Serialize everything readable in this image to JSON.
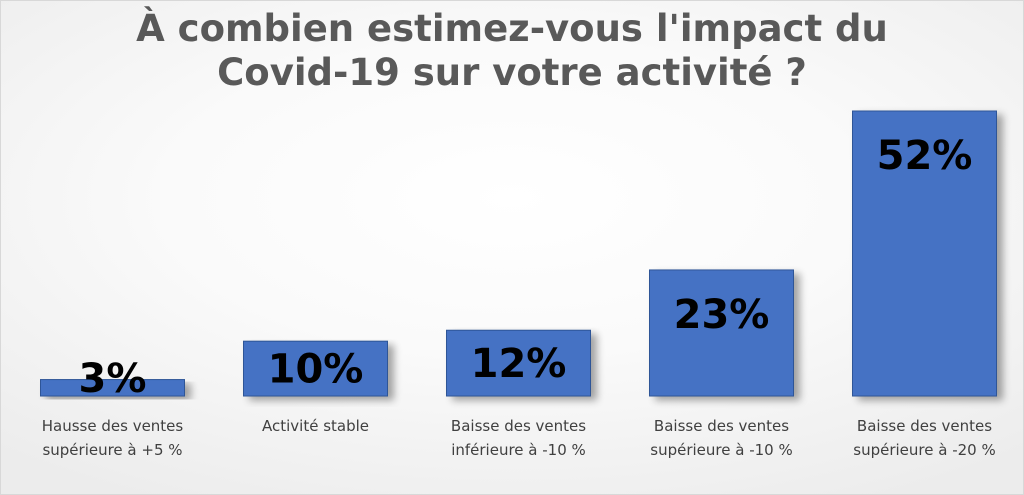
{
  "chart_data": {
    "type": "bar",
    "title_lines": [
      "À combien estimez-vous l'impact du",
      "Covid-19 sur votre activité ?"
    ],
    "categories": [
      [
        "Hausse des ventes",
        "supérieure à +5 %"
      ],
      [
        "Activité stable"
      ],
      [
        "Baisse des ventes",
        "inférieure à -10 %"
      ],
      [
        "Baisse des ventes",
        "supérieure à -10 %"
      ],
      [
        "Baisse des ventes",
        "supérieure à -20 %"
      ]
    ],
    "values": [
      3,
      10,
      12,
      23,
      52
    ],
    "data_labels": [
      "3%",
      "10%",
      "12%",
      "23%",
      "52%"
    ],
    "ylim": [
      0,
      52
    ],
    "grid": false,
    "colors": {
      "bar": "#4472C4",
      "bar_edge": "#2F5597",
      "label_text": "#000000",
      "category_text": "#404040",
      "title_text": "#595959"
    }
  }
}
